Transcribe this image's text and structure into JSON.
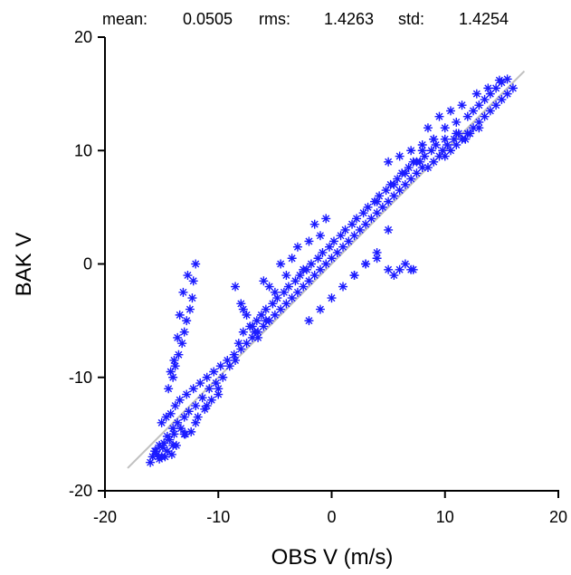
{
  "header": {
    "mean_label": "mean:",
    "mean_value": "0.0505",
    "rms_label": "rms:",
    "rms_value": "1.4263",
    "std_label": "std:",
    "std_value": "1.4254"
  },
  "chart_data": {
    "type": "scatter",
    "xlabel": "OBS V  (m/s)",
    "ylabel": "BAK V",
    "xlim": [
      -20,
      20
    ],
    "ylim": [
      -20,
      20
    ],
    "xticks": [
      -20,
      -10,
      0,
      10,
      20
    ],
    "yticks": [
      -20,
      -10,
      0,
      10,
      20
    ],
    "xtick_labels": [
      "-20",
      "-10",
      "0",
      "10",
      "20"
    ],
    "ytick_labels": [
      "-20",
      "-10",
      "0",
      "10",
      "20"
    ],
    "marker": "asterisk",
    "marker_color": "#1a1aff",
    "reference_line": {
      "x": [
        -18,
        17
      ],
      "y": [
        -18,
        17
      ],
      "color": "#c0c0c0"
    },
    "grid": false,
    "series": [
      {
        "color": "#1a1aff",
        "x": [
          -15.5,
          -15.2,
          -14.8,
          -14.5,
          -14.0,
          -13.6,
          -13.0,
          -12.6,
          -12.0,
          -11.4,
          -10.8,
          -10.2,
          -9.6,
          -9.0,
          -8.5,
          -8.0,
          -7.5,
          -7.0,
          -6.5,
          -6.0,
          -5.5,
          -5.0,
          -4.5,
          -4.0,
          -3.5,
          -3.0,
          -2.5,
          -2.0,
          -1.5,
          -1.0,
          -0.5,
          0.0,
          0.5,
          1.0,
          1.5,
          2.0,
          2.5,
          3.0,
          3.5,
          4.0,
          4.5,
          5.0,
          5.5,
          6.0,
          6.5,
          7.0,
          7.5,
          8.0,
          8.5,
          9.0,
          9.5,
          10.0,
          10.5,
          11.0,
          11.5,
          12.0,
          12.5,
          13.0,
          13.5,
          14.0,
          14.5,
          15.0,
          15.5,
          16.0,
          -15.0,
          -14.6,
          -14.2,
          -13.8,
          -13.4,
          -12.8,
          -12.2,
          -11.6,
          -11.0,
          -10.4,
          -9.8,
          -9.2,
          -8.6,
          -8.2,
          -7.8,
          -7.2,
          -6.6,
          -6.2,
          -5.8,
          -5.2,
          -4.8,
          -4.2,
          -3.8,
          -3.2,
          -2.8,
          -2.2,
          -1.8,
          -1.2,
          -0.8,
          -0.2,
          0.2,
          0.8,
          1.2,
          1.8,
          2.2,
          2.8,
          3.2,
          3.8,
          4.2,
          4.8,
          5.2,
          5.8,
          6.2,
          6.8,
          7.2,
          7.8,
          8.2,
          8.8,
          9.2,
          9.8,
          10.2,
          10.8,
          11.2,
          11.8,
          12.2,
          -14.4,
          -14.0,
          -13.8,
          -13.5,
          -13.2,
          -13.0,
          -12.8,
          -12.5,
          -12.3,
          -12.2,
          -12.0,
          -14.2,
          -13.9,
          -13.6,
          -13.4,
          -13.1,
          -12.7,
          -8.0,
          -7.5,
          -7.0,
          -6.0,
          -5.5,
          -5.0,
          -4.0,
          -3.0,
          -2.0,
          -1.0,
          -6.5,
          -5.8,
          -4.5,
          -3.5,
          -2.5,
          -1.5,
          -0.5,
          -8.5,
          -7.8,
          -6.8,
          2.0,
          3.0,
          4.0,
          5.0,
          5.5,
          6.0,
          6.5,
          7.0,
          7.2,
          5.0,
          4.0,
          5.5,
          6.5,
          7.5,
          8.0,
          9.0,
          10.0,
          11.0,
          12.0,
          12.5,
          13.0,
          13.5,
          14.0,
          14.5,
          15.0,
          15.5,
          8.5,
          9.5,
          10.5,
          11.5,
          12.8,
          13.8,
          14.8,
          5.0,
          6.0,
          7.0,
          8.0,
          9.0,
          10.0,
          11.0,
          12.0,
          13.0,
          -2.0,
          -1.0,
          0.0,
          1.0,
          2.0,
          3.0,
          4.0,
          -15.0,
          -14.5,
          -14.0,
          -13.0,
          -12.0,
          -11.0,
          -10.0,
          -16.0,
          -15.8,
          -15.6,
          -15.4,
          -15.2,
          -14.9,
          -14.7,
          -14.3,
          -14.1,
          -13.9,
          -13.7,
          -13.3,
          -12.9,
          -12.4,
          -11.8,
          -11.2,
          -10.6,
          -10.0
        ],
        "y": [
          -16.5,
          -16.0,
          -15.8,
          -15.2,
          -14.5,
          -14.0,
          -13.5,
          -13.0,
          -12.5,
          -11.8,
          -11.0,
          -10.5,
          -10.0,
          -9.0,
          -8.5,
          -7.5,
          -7.0,
          -6.5,
          -6.0,
          -5.5,
          -5.0,
          -4.5,
          -4.0,
          -3.5,
          -3.0,
          -2.5,
          -2.0,
          -1.5,
          -1.0,
          -0.5,
          0.0,
          0.5,
          1.0,
          1.5,
          2.0,
          2.5,
          3.0,
          3.5,
          4.0,
          4.5,
          5.0,
          5.5,
          6.0,
          6.5,
          7.0,
          7.5,
          8.0,
          8.5,
          8.5,
          9.0,
          9.5,
          9.5,
          10.0,
          10.5,
          11.0,
          11.5,
          12.0,
          12.5,
          13.0,
          13.5,
          14.0,
          14.5,
          15.0,
          15.5,
          -14.0,
          -13.5,
          -13.2,
          -12.5,
          -12.0,
          -11.5,
          -11.0,
          -10.5,
          -10.0,
          -9.5,
          -9.0,
          -8.5,
          -8.0,
          -7.0,
          -6.0,
          -5.5,
          -5.0,
          -4.5,
          -4.0,
          -3.5,
          -3.0,
          -2.5,
          -2.0,
          -1.5,
          -1.0,
          -0.5,
          0.0,
          0.5,
          1.0,
          1.5,
          2.0,
          2.5,
          3.0,
          3.5,
          4.0,
          4.5,
          5.0,
          5.5,
          6.0,
          6.5,
          7.0,
          7.5,
          8.0,
          8.5,
          9.0,
          9.0,
          9.5,
          10.0,
          10.5,
          10.0,
          10.5,
          11.0,
          11.5,
          11.0,
          11.5,
          -11.0,
          -10.0,
          -9.0,
          -8.0,
          -7.0,
          -6.0,
          -5.0,
          -4.0,
          -3.0,
          -1.5,
          0.0,
          -9.5,
          -8.5,
          -6.5,
          -4.5,
          -2.5,
          -1.0,
          -3.5,
          -4.5,
          -5.5,
          -1.5,
          -2.0,
          -2.5,
          -1.0,
          1.5,
          2.0,
          2.5,
          -6.5,
          -5.0,
          0.0,
          0.5,
          -0.5,
          3.5,
          4.0,
          -2.0,
          -4.0,
          -6.0,
          -1.0,
          0.0,
          0.5,
          -0.5,
          -1.0,
          -0.5,
          0.0,
          -0.5,
          -0.5,
          3.0,
          5.5,
          7.0,
          8.0,
          9.0,
          10.0,
          11.0,
          12.0,
          12.5,
          13.0,
          13.5,
          14.0,
          14.5,
          15.0,
          15.5,
          16.0,
          16.3,
          12.0,
          13.0,
          13.5,
          14.0,
          15.0,
          15.5,
          16.2,
          9.0,
          9.5,
          10.0,
          10.5,
          11.0,
          11.0,
          11.5,
          11.5,
          12.0,
          -5.0,
          -4.0,
          -3.0,
          -2.0,
          -1.0,
          0.0,
          1.0,
          -17.0,
          -16.5,
          -16.0,
          -15.0,
          -14.0,
          -12.5,
          -11.0,
          -17.5,
          -17.0,
          -16.5,
          -16.8,
          -17.2,
          -16.2,
          -17.0,
          -15.5,
          -16.8,
          -15.0,
          -16.0,
          -14.5,
          -15.0,
          -14.8,
          -13.5,
          -12.8,
          -12.0,
          -11.5
        ]
      }
    ]
  }
}
